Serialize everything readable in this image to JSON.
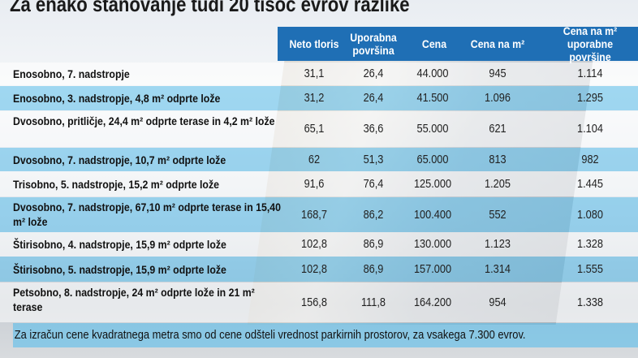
{
  "title": "Za enako stanovanje tudi 20 tisoč evrov razlike",
  "chart_data": {
    "type": "table",
    "columns": [
      "Neto tloris",
      "Uporabna površina",
      "Cena",
      "Cena na m²",
      "Cena na m² uporabne površine"
    ],
    "rows": [
      {
        "label": "Enosobno, 7. nadstropje",
        "values": [
          "31,1",
          "26,4",
          "44.000",
          "945",
          "1.114"
        ]
      },
      {
        "label": "Enosobno, 3. nadstropje, 4,8 m² odprte lože",
        "values": [
          "31,2",
          "26,4",
          "41.500",
          "1.096",
          "1.295"
        ]
      },
      {
        "label": "Dvosobno, pritličje, 24,4 m² odprte terase in 4,2 m² lože",
        "values": [
          "65,1",
          "36,6",
          "55.000",
          "621",
          "1.104"
        ]
      },
      {
        "label": "Dvosobno, 7. nadstropje, 10,7 m² odprte lože",
        "values": [
          "62",
          "51,3",
          "65.000",
          "813",
          "982"
        ]
      },
      {
        "label": "Trisobno, 5. nadstropje, 15,2 m² odprte lože",
        "values": [
          "91,6",
          "76,4",
          "125.000",
          "1.205",
          "1.445"
        ]
      },
      {
        "label": "Dvosobno, 7. nadstropje, 67,10 m² odprte terase in 15,40 m² lože",
        "values": [
          "168,7",
          "86,2",
          "100.400",
          "552",
          "1.080"
        ]
      },
      {
        "label": "Štirisobno, 4. nadstropje, 15,9 m² odprte lože",
        "values": [
          "102,8",
          "86,9",
          "130.000",
          "1.123",
          "1.328"
        ]
      },
      {
        "label": "Štirisobno, 5. nadstropje, 15,9 m² odprte lože",
        "values": [
          "102,8",
          "86,9",
          "157.000",
          "1.314",
          "1.555"
        ]
      },
      {
        "label": "Petsobno, 8. nadstropje, 24 m² odprte lože in 21 m² terase",
        "values": [
          "156,8",
          "111,8",
          "164.200",
          "954",
          "1.338"
        ]
      }
    ]
  },
  "note": "Za izračun cene kvadratnega metra smo od cene odšteli vrednost parkirnih prostorov, za vsakega 7.300 evrov.",
  "colors": {
    "header": "#1f6fb5",
    "band": "#5abeeb"
  }
}
